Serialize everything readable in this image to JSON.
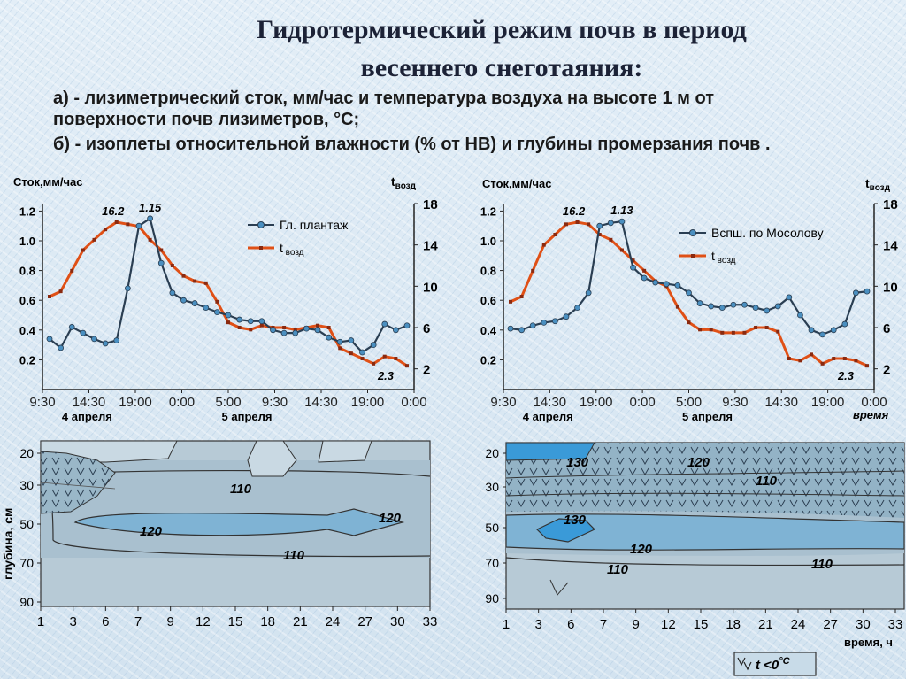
{
  "title": {
    "line1": "Гидротермический режим почв в период",
    "line2": "весеннего снеготаяния:"
  },
  "subtitle": {
    "a_line1": "а) - лизиметрический сток, мм/час и температура воздуха на высоте 1 м от",
    "a_line2": "поверхности почв лизиметров, °С;",
    "b_line": "б) - изоплеты относительной влажности (% от НВ) и глубины промерзания почв ."
  },
  "colors": {
    "runoff_line": "#2a3e52",
    "runoff_marker": "#4a8fc0",
    "temp_line": "#e05016",
    "temp_marker": "#8a2a10",
    "isopleth_fill_110": "#a9c6d8",
    "isopleth_fill_120": "#7fb3d4",
    "isopleth_fill_130": "#3a9ad8",
    "frozen_fill": "#8fb0c4"
  },
  "chart_data": [
    {
      "type": "line",
      "id": "left_top",
      "ylabel_left": "Сток,мм/час",
      "ylabel_right_main": "t",
      "ylabel_right_sub": "возд",
      "y_left_ticks": [
        "1.2",
        "1.0",
        "0.8",
        "0.6",
        "0.4",
        "0.2"
      ],
      "y_right_ticks": [
        "18",
        "14",
        "10",
        "6",
        "2"
      ],
      "x_ticks": [
        "9:30",
        "14:30",
        "19:00",
        "0:00",
        "5:00",
        "9:30",
        "14:30",
        "19:00",
        "0:00"
      ],
      "date_labels": [
        "4 апреля",
        "5 апреля"
      ],
      "legend": [
        {
          "name": "Гл. плантаж"
        },
        {
          "name": "t",
          "sub": "возд"
        }
      ],
      "annotations": [
        "1.15",
        "16.2",
        "2.3"
      ],
      "ylim_left": [
        0,
        1.25
      ],
      "ylim_right": [
        0,
        18
      ],
      "series": [
        {
          "name": "Гл. плантаж",
          "axis": "left",
          "values": [
            0.34,
            0.28,
            0.42,
            0.38,
            0.34,
            0.31,
            0.33,
            0.68,
            1.1,
            1.15,
            0.85,
            0.65,
            0.6,
            0.58,
            0.55,
            0.52,
            0.5,
            0.47,
            0.46,
            0.46,
            0.4,
            0.38,
            0.38,
            0.41,
            0.4,
            0.35,
            0.32,
            0.33,
            0.25,
            0.3,
            0.44,
            0.4,
            0.43
          ]
        },
        {
          "name": "t возд",
          "axis": "right",
          "values": [
            9.0,
            9.5,
            11.5,
            13.5,
            14.5,
            15.5,
            16.2,
            16.0,
            15.8,
            14.5,
            13.5,
            12.0,
            11.0,
            10.5,
            10.3,
            8.5,
            6.5,
            6.0,
            5.8,
            6.2,
            6.0,
            6.0,
            5.8,
            6.0,
            6.2,
            6.0,
            4.0,
            3.5,
            3.0,
            2.5,
            3.2,
            3.0,
            2.3
          ]
        }
      ]
    },
    {
      "type": "line",
      "id": "right_top",
      "ylabel_left": "Сток,мм/час",
      "ylabel_right_main": "t",
      "ylabel_right_sub": "возд",
      "y_left_ticks": [
        "1.2",
        "1.0",
        "0.8",
        "0.6",
        "0.4",
        "0.2"
      ],
      "y_right_ticks": [
        "18",
        "14",
        "10",
        "6",
        "2"
      ],
      "x_ticks": [
        "9:30",
        "14:30",
        "19:00",
        "0:00",
        "5:00",
        "9:30",
        "14:30",
        "19:00",
        "0:00"
      ],
      "date_labels": [
        "4 апреля",
        "5 апреля"
      ],
      "x_name": "время",
      "legend": [
        {
          "name": "Вспш. по Мосолову"
        },
        {
          "name": "t",
          "sub": "возд"
        }
      ],
      "annotations": [
        "1.13",
        "16.2",
        "2.3"
      ],
      "ylim_left": [
        0,
        1.25
      ],
      "ylim_right": [
        0,
        18
      ],
      "series": [
        {
          "name": "Вспш. по Мосолову",
          "axis": "left",
          "values": [
            0.41,
            0.4,
            0.43,
            0.45,
            0.46,
            0.49,
            0.55,
            0.65,
            1.1,
            1.12,
            1.13,
            0.82,
            0.75,
            0.72,
            0.71,
            0.7,
            0.65,
            0.58,
            0.56,
            0.55,
            0.57,
            0.57,
            0.55,
            0.53,
            0.56,
            0.62,
            0.5,
            0.4,
            0.37,
            0.4,
            0.44,
            0.65,
            0.66
          ]
        },
        {
          "name": "t возд",
          "axis": "right",
          "values": [
            8.5,
            9.0,
            11.5,
            14.0,
            15.0,
            16.0,
            16.2,
            16.0,
            15.0,
            14.5,
            13.5,
            12.5,
            11.5,
            10.5,
            10.0,
            8.0,
            6.5,
            5.8,
            5.8,
            5.5,
            5.5,
            5.5,
            6.0,
            6.0,
            5.6,
            3.0,
            2.8,
            3.4,
            2.5,
            3.0,
            3.0,
            2.8,
            2.3
          ]
        }
      ]
    },
    {
      "type": "heatmap",
      "id": "left_bottom",
      "ylabel": "глубина, см",
      "y_ticks": [
        "20",
        "30",
        "50",
        "70",
        "90"
      ],
      "x_ticks": [
        "1",
        "3",
        "6",
        "7",
        "9",
        "12",
        "15",
        "18",
        "21",
        "24",
        "27",
        "30",
        "33"
      ],
      "contour_labels": [
        "110",
        "120",
        "110",
        "120"
      ]
    },
    {
      "type": "heatmap",
      "id": "right_bottom",
      "y_ticks": [
        "20",
        "30",
        "50",
        "70",
        "90"
      ],
      "x_ticks": [
        "1",
        "3",
        "6",
        "7",
        "9",
        "12",
        "15",
        "18",
        "21",
        "24",
        "27",
        "30",
        "33"
      ],
      "x_name": "время, ч",
      "contour_labels": [
        "130",
        "120",
        "110",
        "130",
        "120",
        "110",
        "110"
      ],
      "legend_main": "t <0",
      "legend_deg": "°С"
    }
  ]
}
